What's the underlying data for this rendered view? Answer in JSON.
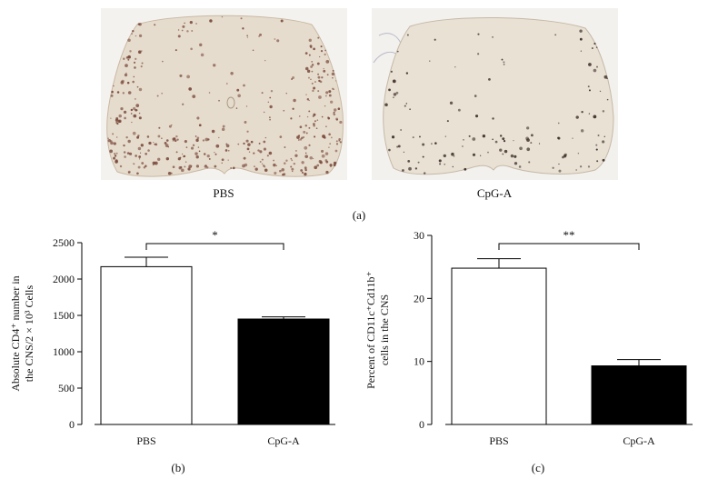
{
  "figure": {
    "panel_a": {
      "left_caption": "PBS",
      "right_caption": "CpG-A",
      "panel_label": "(a)"
    },
    "panel_b": {
      "panel_label": "(b)"
    },
    "panel_c": {
      "panel_label": "(c)"
    }
  },
  "chart_data": [
    {
      "type": "bar",
      "categories": [
        "PBS",
        "CpG-A"
      ],
      "values": [
        2170,
        1450
      ],
      "errors": [
        130,
        30
      ],
      "bar_colors": [
        "#ffffff",
        "#000000"
      ],
      "ylabel": "Absolute CD4⁺ number in the CNS/2 × 10³ Cells",
      "ylabel_lines": [
        "Absolute CD4⁺ number in",
        "the CNS/2 × 10³ Cells"
      ],
      "ylim": [
        0,
        2500
      ],
      "yticks": [
        0,
        500,
        1000,
        1500,
        2000,
        2500
      ],
      "significance": "*",
      "grid": false
    },
    {
      "type": "bar",
      "categories": [
        "PBS",
        "CpG-A"
      ],
      "values": [
        24.8,
        9.3
      ],
      "errors": [
        1.5,
        1.0
      ],
      "bar_colors": [
        "#ffffff",
        "#000000"
      ],
      "ylabel": "Percent of CD11c⁺Cd11b⁺ cells in the CNS",
      "ylabel_lines": [
        "Percent of CD11c⁺Cd11b⁺",
        "cells in the CNS"
      ],
      "ylim": [
        0,
        30
      ],
      "yticks": [
        0,
        10,
        20,
        30
      ],
      "significance": "**",
      "grid": false
    }
  ]
}
